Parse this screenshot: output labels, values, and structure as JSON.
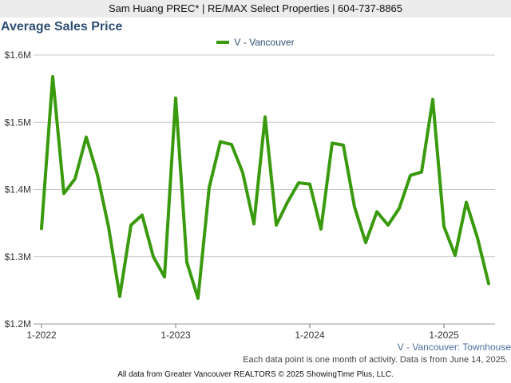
{
  "header": {
    "text": "Sam Huang PREC* | RE/MAX Select Properties | 604-737-8865"
  },
  "chart_title": "Average Sales Price",
  "series_caption": "V - Vancouver: Townhouse",
  "note": "Each data point is one month of activity. Data is from June 14, 2025.",
  "footer": "All data from Greater Vancouver REALTORS © 2025 ShowingTime Plus, LLC.",
  "colors": {
    "line": "#3a9a0e",
    "title": "#2d4e73",
    "grid": "#c8c8c8"
  },
  "chart_data": {
    "type": "line",
    "title": "Average Sales Price",
    "xlabel": "",
    "ylabel": "",
    "x_ticks": [
      "1-2022",
      "1-2023",
      "1-2024",
      "1-2025"
    ],
    "y_ticks": [
      "$1.2M",
      "$1.3M",
      "$1.4M",
      "$1.5M",
      "$1.6M"
    ],
    "ylim": [
      1200000,
      1600000
    ],
    "x_start": "2022-01",
    "grid": "horizontal",
    "legend_position": "top-center",
    "series": [
      {
        "name": "V - Vancouver",
        "x": [
          "2022-01",
          "2022-02",
          "2022-03",
          "2022-04",
          "2022-05",
          "2022-06",
          "2022-07",
          "2022-08",
          "2022-09",
          "2022-10",
          "2022-11",
          "2022-12",
          "2023-01",
          "2023-02",
          "2023-03",
          "2023-04",
          "2023-05",
          "2023-06",
          "2023-07",
          "2023-08",
          "2023-09",
          "2023-10",
          "2023-11",
          "2023-12",
          "2024-01",
          "2024-02",
          "2024-03",
          "2024-04",
          "2024-05",
          "2024-06",
          "2024-07",
          "2024-08",
          "2024-09",
          "2024-10",
          "2024-11",
          "2024-12",
          "2025-01",
          "2025-02",
          "2025-03",
          "2025-04",
          "2025-05"
        ],
        "values": [
          1342000,
          1568000,
          1394000,
          1416000,
          1478000,
          1422000,
          1344000,
          1241000,
          1347000,
          1362000,
          1300000,
          1270000,
          1536000,
          1292000,
          1238000,
          1403000,
          1471000,
          1467000,
          1425000,
          1349000,
          1508000,
          1347000,
          1381000,
          1410000,
          1408000,
          1341000,
          1469000,
          1466000,
          1374000,
          1321000,
          1367000,
          1347000,
          1372000,
          1421000,
          1426000,
          1534000,
          1345000,
          1302000,
          1381000,
          1328000,
          1260000
        ]
      }
    ]
  }
}
